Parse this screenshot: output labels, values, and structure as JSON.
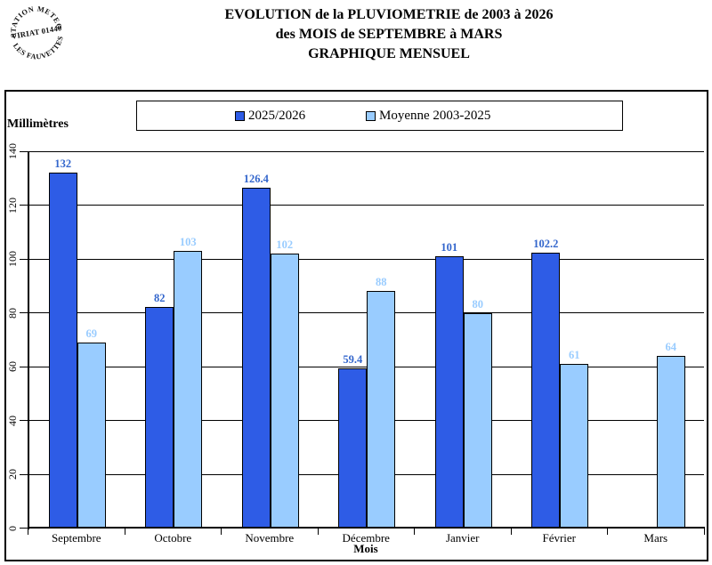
{
  "stamp": {
    "arc_top": "STATION METEO",
    "center": "VIRIAT 01440",
    "arc_bottom": "LES FAUVETTES"
  },
  "title": {
    "line1": "EVOLUTION de la PLUVIOMETRIE de 2003 à 2026",
    "line2": "des MOIS de SEPTEMBRE à MARS",
    "line3": "GRAPHIQUE MENSUEL"
  },
  "chart_data": {
    "type": "bar",
    "title": "EVOLUTION de la PLUVIOMETRIE de 2003 à 2026 des MOIS de SEPTEMBRE à MARS - GRAPHIQUE MENSUEL",
    "categories": [
      "Septembre",
      "Octobre",
      "Novembre",
      "Décembre",
      "Janvier",
      "Février",
      "Mars"
    ],
    "series": [
      {
        "name": "2025/2026",
        "color": "#2E5CE6",
        "label_color": "#3366CC",
        "values": [
          132,
          82,
          126.4,
          59.4,
          101,
          102.2,
          null
        ]
      },
      {
        "name": "Moyenne 2003-2025",
        "color": "#99CCFF",
        "label_color": "#99CCFF",
        "values": [
          69,
          103,
          102,
          88,
          80,
          61,
          64
        ]
      }
    ],
    "ylabel": "Millimètres",
    "xlabel": "Mois",
    "ylim": [
      0,
      140
    ],
    "ytick_step": 20,
    "yticks": [
      0,
      20,
      40,
      60,
      80,
      100,
      120,
      140
    ],
    "grid": true,
    "legend_position": "top",
    "axis_color": "#000000",
    "background": "#FFFFFF"
  }
}
